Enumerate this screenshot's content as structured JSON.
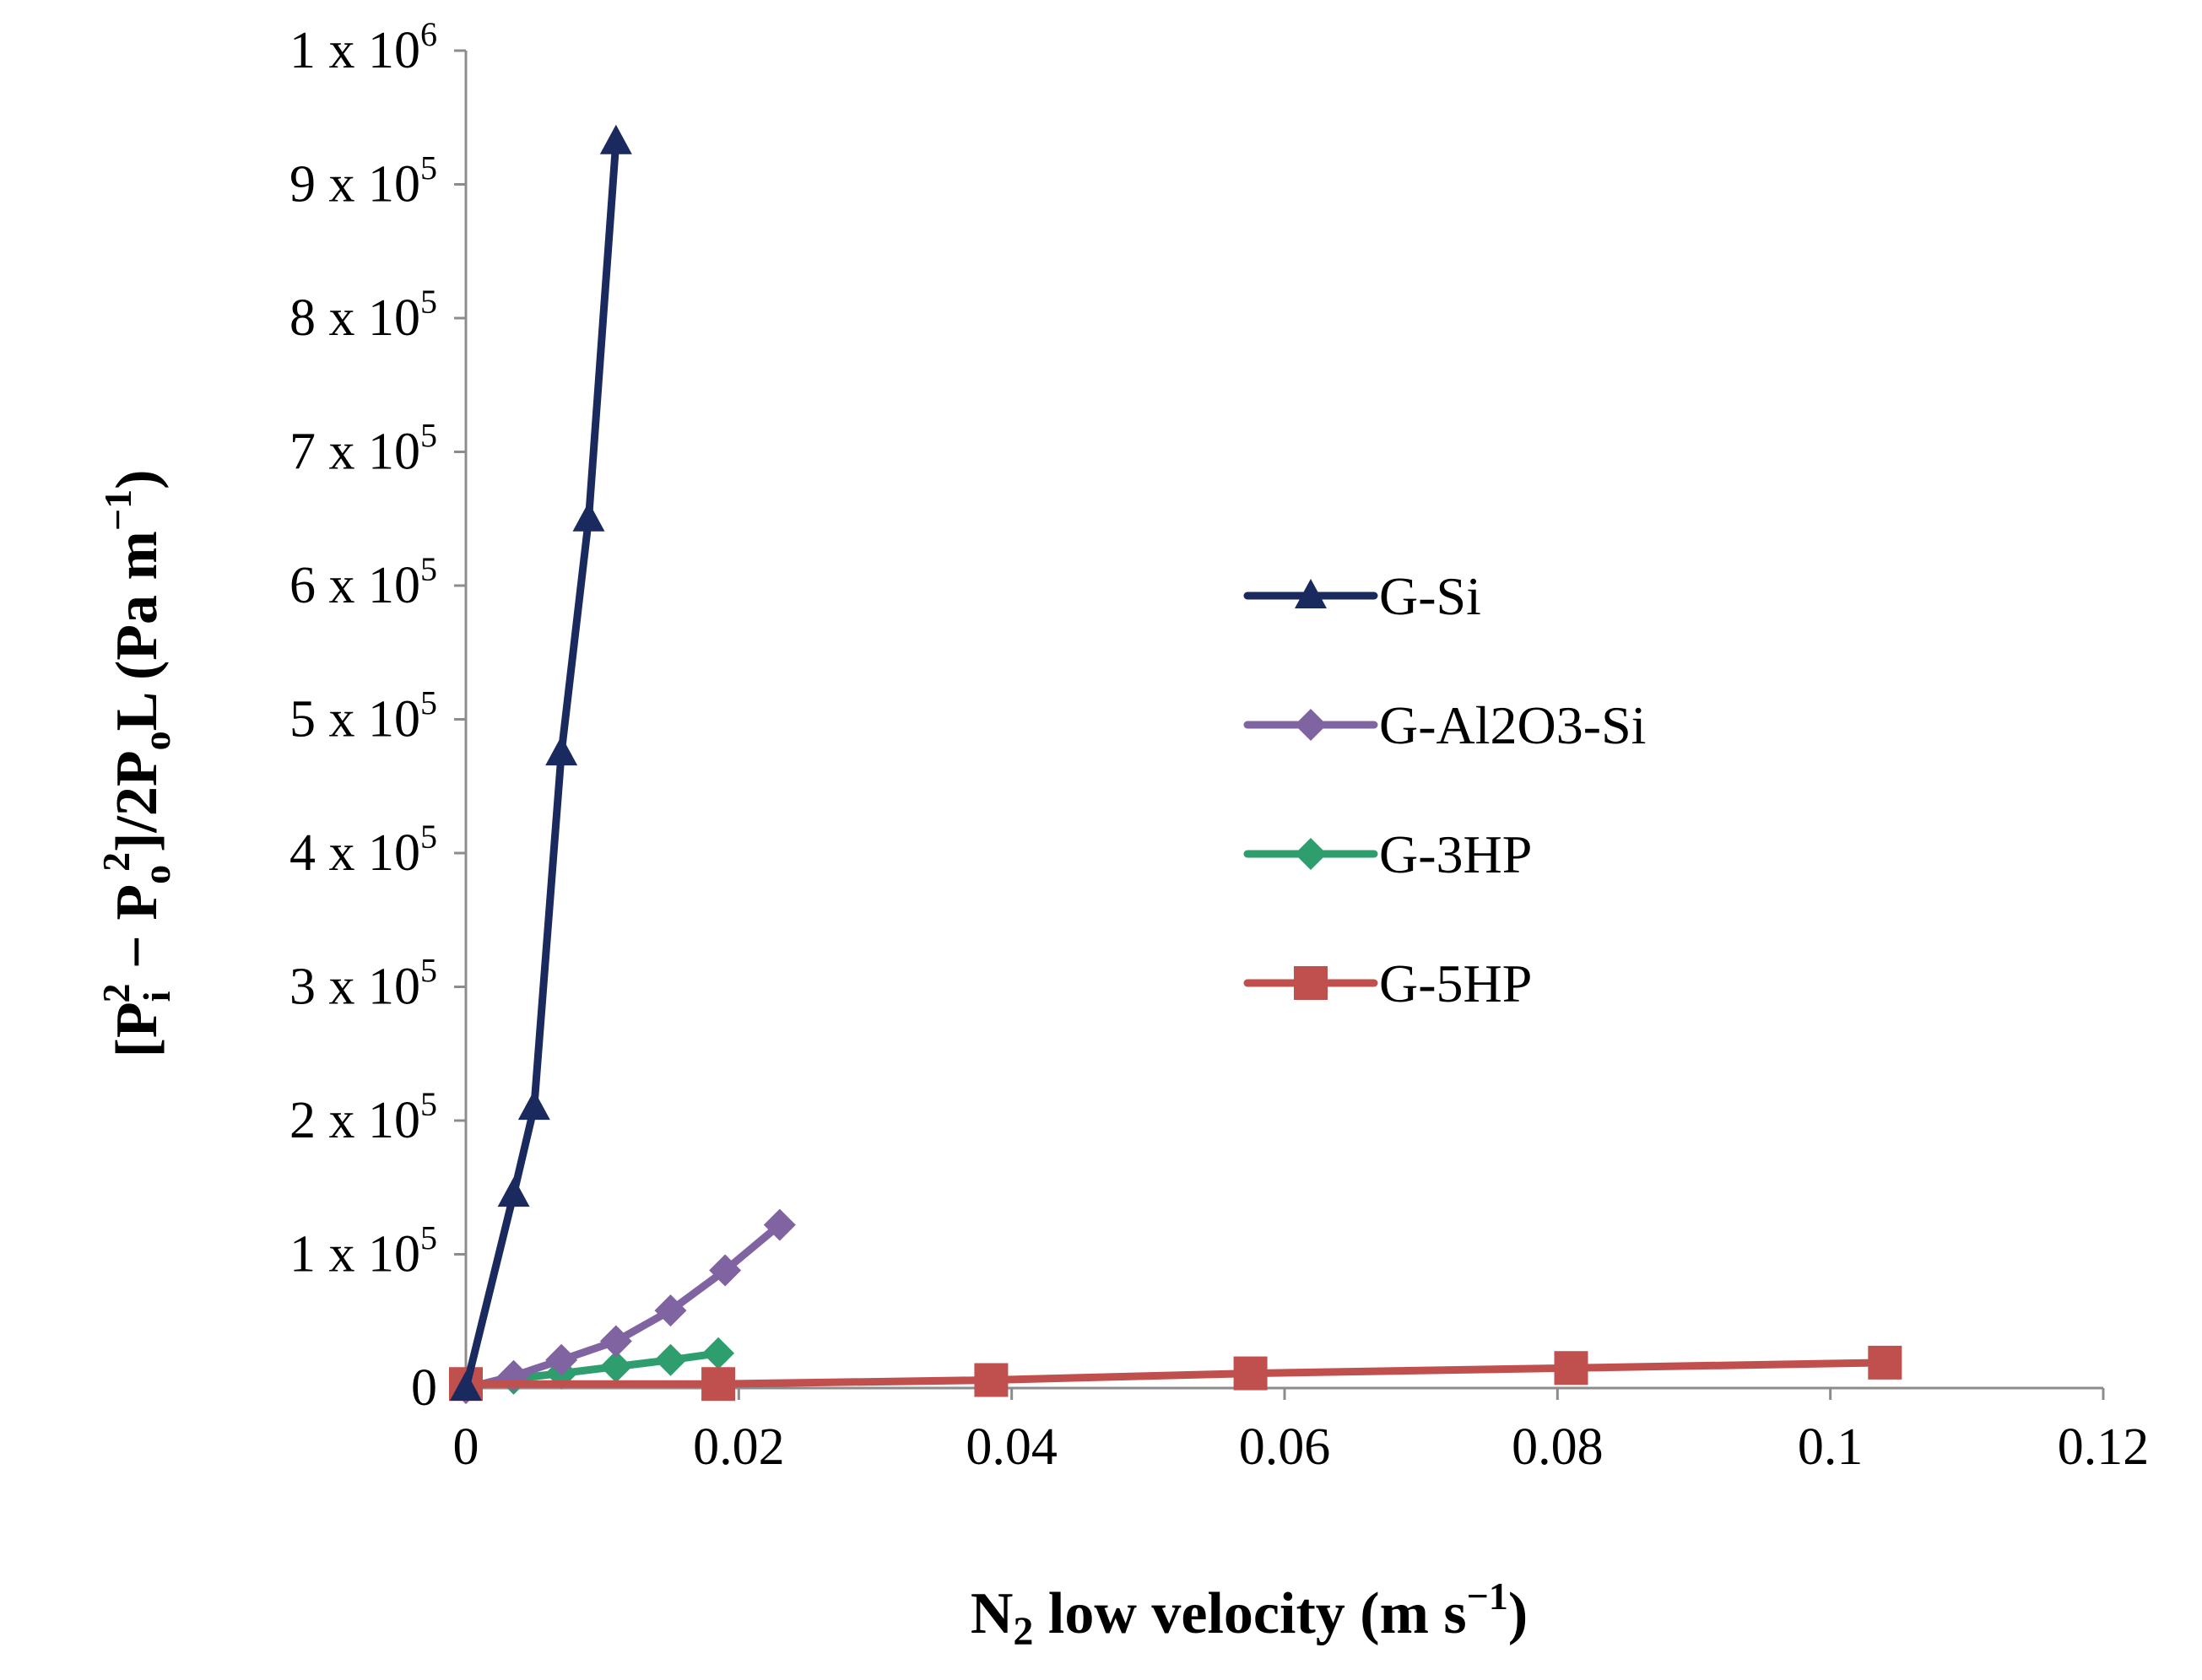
{
  "chart_data": {
    "type": "line",
    "title": "",
    "xlabel": "N2 low velocity (m s−1)",
    "xlabel_parts": {
      "base": "N",
      "sub": "2",
      "rest": " low velocity (m s",
      "sup": "−1",
      "close": ")"
    },
    "ylabel": "[Pi2 − Po2]/2PoL (Pa m−1)",
    "ylabel_parts": {
      "p1": "[P",
      "sub_i": "i",
      "sup_2a": "2",
      "p2": " − P",
      "sub_o1": "o",
      "sup_2b": "2",
      "p3": "]/2P",
      "sub_o2": "o",
      "p4": "L (Pa m",
      "sup_neg1": "−1",
      "p5": ")"
    },
    "xlim": [
      0,
      0.12
    ],
    "ylim": [
      0,
      1000000
    ],
    "x_ticks": [
      0,
      0.02,
      0.04,
      0.06,
      0.08,
      0.1,
      0.12
    ],
    "x_tick_labels": [
      "0",
      "0.02",
      "0.04",
      "0.06",
      "0.08",
      "0.1",
      "0.12"
    ],
    "y_ticks": [
      0,
      100000,
      200000,
      300000,
      400000,
      500000,
      600000,
      700000,
      800000,
      900000,
      1000000
    ],
    "y_tick_labels": [
      {
        "base": "0",
        "exp": ""
      },
      {
        "base": "1 x 10",
        "exp": "5"
      },
      {
        "base": "2 x 10",
        "exp": "5"
      },
      {
        "base": "3 x 10",
        "exp": "5"
      },
      {
        "base": "4 x 10",
        "exp": "5"
      },
      {
        "base": "5 x 10",
        "exp": "5"
      },
      {
        "base": "6 x 10",
        "exp": "5"
      },
      {
        "base": "7 x 10",
        "exp": "5"
      },
      {
        "base": "8 x 10",
        "exp": "5"
      },
      {
        "base": "9 x 10",
        "exp": "5"
      },
      {
        "base": "1 x 10",
        "exp": "6"
      }
    ],
    "grid": false,
    "legend_position": "center-right",
    "series": [
      {
        "name": "G-Si",
        "color": "#1b2a5e",
        "marker": "triangle",
        "x": [
          0,
          0.0035,
          0.005,
          0.007,
          0.009,
          0.011
        ],
        "y": [
          0,
          145000,
          210000,
          475000,
          650000,
          932000
        ]
      },
      {
        "name": "G-Al2O3-Si",
        "color": "#8064a2",
        "marker": "diamond",
        "x": [
          0,
          0.0035,
          0.007,
          0.011,
          0.015,
          0.019,
          0.023
        ],
        "y": [
          0,
          9000,
          21000,
          35000,
          58000,
          88000,
          122000
        ]
      },
      {
        "name": "G-3HP",
        "color": "#2e9e6e",
        "marker": "diamond",
        "x": [
          0,
          0.0035,
          0.007,
          0.011,
          0.015,
          0.0185
        ],
        "y": [
          0,
          7000,
          11000,
          16000,
          21000,
          26000
        ]
      },
      {
        "name": "G-5HP",
        "color": "#c0504d",
        "marker": "square",
        "x": [
          0,
          0.0185,
          0.0385,
          0.0575,
          0.081,
          0.104
        ],
        "y": [
          3000,
          3000,
          6000,
          11000,
          15000,
          19000
        ]
      }
    ]
  }
}
